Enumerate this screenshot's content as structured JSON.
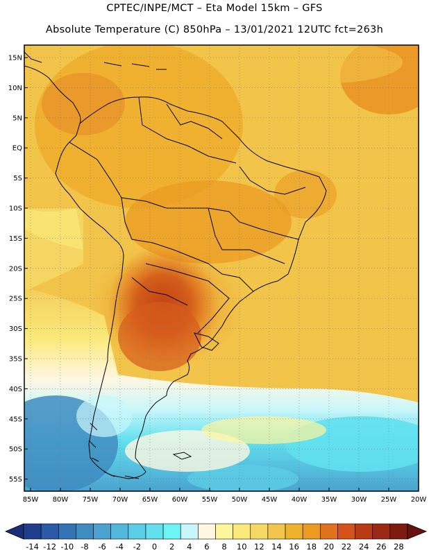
{
  "header": {
    "line1": "CPTEC/INPE/MCT –  Eta Model 15km – GFS",
    "line2": "Absolute Temperature (C) 850hPa – 13/01/2021 12UTC fct=263h"
  },
  "map": {
    "lat_labels": [
      "15N",
      "10N",
      "5N",
      "EQ",
      "5S",
      "10S",
      "15S",
      "20S",
      "25S",
      "30S",
      "35S",
      "40S",
      "45S",
      "50S",
      "55S"
    ],
    "lon_labels": [
      "85W",
      "80W",
      "75W",
      "70W",
      "65W",
      "60W",
      "55W",
      "50W",
      "45W",
      "40W",
      "35W",
      "30W",
      "25W",
      "20W"
    ],
    "region": "South America",
    "variable": "Absolute Temperature (C) 850hPa"
  },
  "colorbar": {
    "labels": [
      "-14",
      "-12",
      "-10",
      "-8",
      "-6",
      "-4",
      "-2",
      "0",
      "2",
      "4",
      "6",
      "8",
      "10",
      "12",
      "14",
      "16",
      "18",
      "20",
      "22",
      "24",
      "26",
      "28"
    ],
    "colors": [
      "#1f3e8c",
      "#2b5aa6",
      "#3574b4",
      "#3f8cc1",
      "#4aa3cf",
      "#52b9dc",
      "#5ccde6",
      "#62e0ee",
      "#6cf4f6",
      "#c8f7fb",
      "#fff7e2",
      "#fff59c",
      "#fbe97b",
      "#f6d865",
      "#f2c64c",
      "#efb22d",
      "#ec9a22",
      "#e2711e",
      "#d4531a",
      "#b83b16",
      "#9c2914",
      "#7d1a12"
    ],
    "end_left_color": "#1b2f78",
    "end_right_color": "#6b1010"
  }
}
